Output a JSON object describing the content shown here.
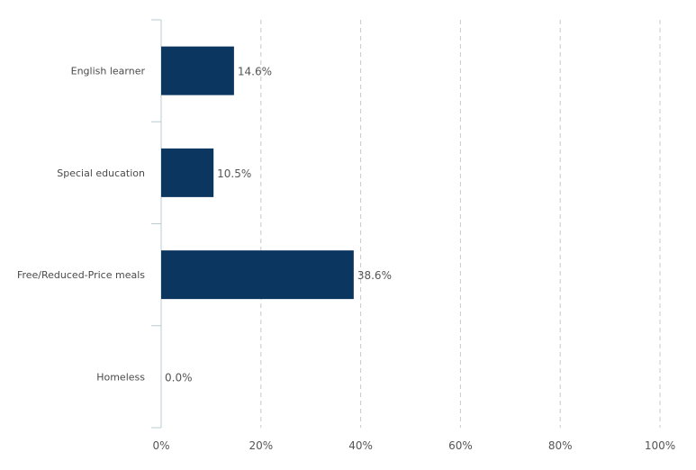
{
  "chart_data": {
    "type": "bar",
    "orientation": "horizontal",
    "categories": [
      "English learner",
      "Special education",
      "Free/Reduced-Price meals",
      "Homeless"
    ],
    "values": [
      14.6,
      10.5,
      38.6,
      0.0
    ],
    "value_labels": [
      "14.6%",
      "10.5%",
      "38.6%",
      "0.0%"
    ],
    "x_ticks": [
      "0%",
      "20%",
      "40%",
      "60%",
      "80%",
      "100%"
    ],
    "xlim": [
      0,
      100
    ],
    "grid": true,
    "colors": {
      "bar": "#0b3660",
      "grid": "#c8c8c8",
      "axis": "#b9cdd0"
    }
  }
}
